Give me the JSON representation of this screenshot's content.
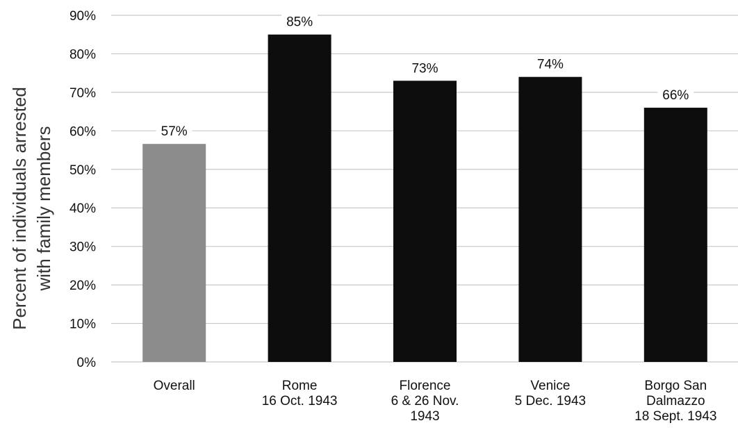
{
  "chart_data": {
    "type": "bar",
    "title": "",
    "xlabel": "",
    "ylabel": [
      "Percent of individuals arrested",
      "with  family members"
    ],
    "ylim": [
      0,
      90
    ],
    "yticks": [
      "0%",
      "10%",
      "20%",
      "30%",
      "40%",
      "50%",
      "60%",
      "70%",
      "80%",
      "90%"
    ],
    "categories": [
      [
        "Overall"
      ],
      [
        "Rome",
        "16 Oct. 1943"
      ],
      [
        "Florence",
        "6 & 26 Nov.",
        "1943"
      ],
      [
        "Venice",
        "5 Dec. 1943"
      ],
      [
        "Borgo San",
        "Dalmazzo",
        "18 Sept. 1943"
      ]
    ],
    "values": [
      56.6,
      85,
      73,
      74,
      66
    ],
    "data_labels": [
      "57%",
      "85%",
      "73%",
      "74%",
      "66%"
    ],
    "colors": [
      "#8c8c8c",
      "#0d0d0d",
      "#0d0d0d",
      "#0d0d0d",
      "#0d0d0d"
    ],
    "grid": true,
    "legend": "none"
  }
}
